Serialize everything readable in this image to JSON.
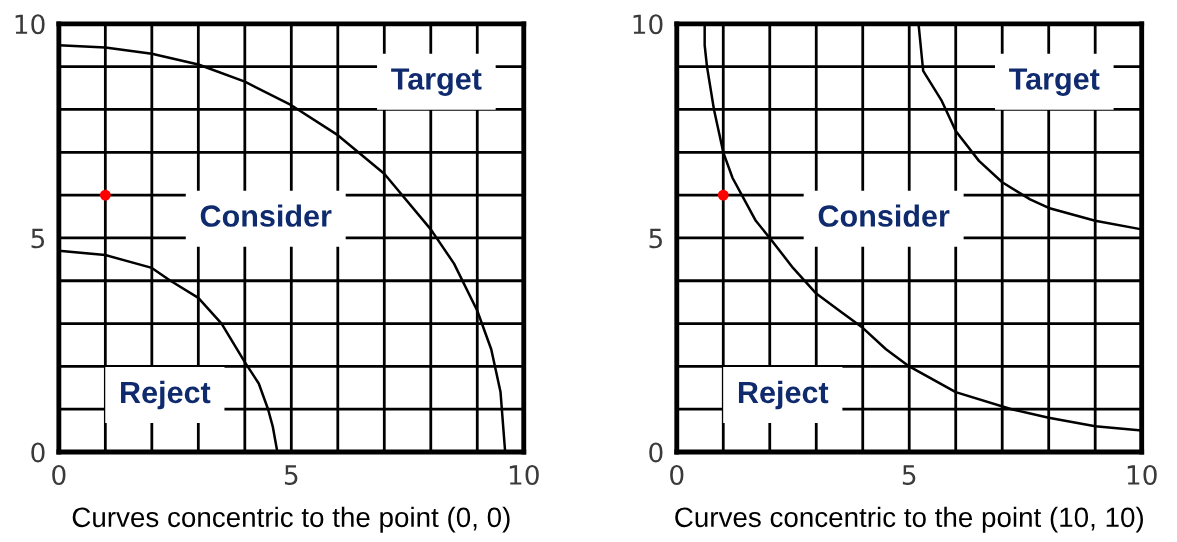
{
  "chart_data": [
    {
      "type": "line",
      "xlabel": "Curves concentric to the point (0, 0)",
      "xlim": [
        0,
        10
      ],
      "ylim": [
        0,
        10
      ],
      "xticks": [
        0,
        {
          "value": 1,
          "label": null
        },
        {
          "value": 2,
          "label": null
        },
        {
          "value": 3,
          "label": null
        },
        {
          "value": 4,
          "label": null
        },
        5,
        {
          "value": 6,
          "label": null
        },
        {
          "value": 7,
          "label": null
        },
        {
          "value": 8,
          "label": null
        },
        {
          "value": 9,
          "label": null
        },
        10
      ],
      "yticks": [
        0,
        {
          "value": 1,
          "label": null
        },
        {
          "value": 2,
          "label": null
        },
        {
          "value": 3,
          "label": null
        },
        {
          "value": 4,
          "label": null
        },
        5,
        {
          "value": 6,
          "label": null
        },
        {
          "value": 7,
          "label": null
        },
        {
          "value": 8,
          "label": null
        },
        {
          "value": 9,
          "label": null
        },
        10
      ],
      "grid": true,
      "series": [
        {
          "color": "#000000",
          "x": [
            0,
            1,
            2,
            3,
            4,
            5,
            6,
            7,
            8,
            8.5,
            9,
            9.3,
            9.5,
            9.6
          ],
          "values": [
            9.5,
            9.45,
            9.3,
            9.05,
            8.65,
            8.1,
            7.4,
            6.5,
            5.2,
            4.4,
            3.3,
            2.4,
            1.4,
            0
          ]
        },
        {
          "color": "#000000",
          "x": [
            0,
            1,
            2,
            2.4,
            3,
            3.5,
            4,
            4.3,
            4.5,
            4.6,
            4.7
          ],
          "values": [
            4.7,
            4.6,
            4.3,
            4.0,
            3.6,
            3.0,
            2.1,
            1.6,
            1.0,
            0.6,
            0
          ]
        },
        {
          "type": "scatter",
          "color": "#ff0000",
          "marker": "circle",
          "x": [
            1
          ],
          "values": [
            6
          ]
        }
      ],
      "annotations": [
        "Target",
        "Consider",
        "Reject"
      ]
    },
    {
      "type": "line",
      "xlabel": "Curves concentric to the point (10, 10)",
      "xlim": [
        0,
        10
      ],
      "ylim": [
        0,
        10
      ],
      "xticks": [
        0,
        {
          "value": 1,
          "label": null
        },
        {
          "value": 2,
          "label": null
        },
        {
          "value": 3,
          "label": null
        },
        {
          "value": 4,
          "label": null
        },
        5,
        {
          "value": 6,
          "label": null
        },
        {
          "value": 7,
          "label": null
        },
        {
          "value": 8,
          "label": null
        },
        {
          "value": 9,
          "label": null
        },
        10
      ],
      "yticks": [
        0,
        {
          "value": 1,
          "label": null
        },
        {
          "value": 2,
          "label": null
        },
        {
          "value": 3,
          "label": null
        },
        {
          "value": 4,
          "label": null
        },
        5,
        {
          "value": 6,
          "label": null
        },
        {
          "value": 7,
          "label": null
        },
        {
          "value": 8,
          "label": null
        },
        {
          "value": 9,
          "label": null
        },
        10
      ],
      "grid": true,
      "series": [
        {
          "color": "#000000",
          "x": [
            0.6,
            0.6,
            0.65,
            0.8,
            1.0,
            1.2,
            1.4,
            1.7,
            2.0,
            2.5,
            3.0,
            3.5,
            4.0,
            4.5,
            5.0,
            6.0,
            7.2,
            8.0,
            9.0,
            10.0
          ],
          "values": [
            10,
            9.5,
            9.0,
            8.0,
            7.0,
            6.4,
            6.0,
            5.4,
            5.0,
            4.3,
            3.7,
            3.3,
            2.9,
            2.4,
            2.0,
            1.4,
            1.0,
            0.8,
            0.6,
            0.5
          ]
        },
        {
          "color": "#000000",
          "x": [
            5.2,
            5.3,
            5.7,
            6.0,
            6.5,
            7.0,
            7.6,
            8.0,
            9.0,
            10.0
          ],
          "values": [
            10,
            8.9,
            8.2,
            7.5,
            6.8,
            6.3,
            5.9,
            5.7,
            5.4,
            5.2
          ]
        },
        {
          "type": "scatter",
          "color": "#ff0000",
          "marker": "circle",
          "x": [
            1
          ],
          "values": [
            6
          ]
        }
      ],
      "annotations": [
        "Target",
        "Consider",
        "Reject"
      ]
    }
  ]
}
